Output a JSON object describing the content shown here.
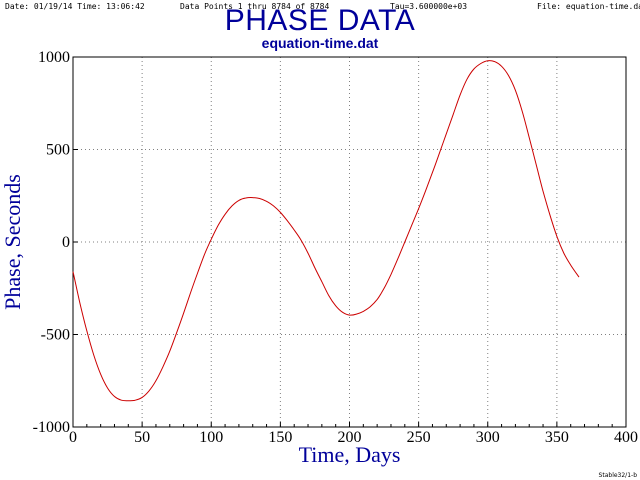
{
  "header": {
    "date": "Date: 01/19/14",
    "time": "Time: 13:06:42",
    "points": "Data Points 1 thru 8784  of 8784",
    "tau": "Tau=3.600000e+03",
    "file": "File: equation-time.dat"
  },
  "footer": "Stable32/1-b",
  "colors": {
    "title": "#00009a",
    "line": "#cc0000",
    "axis_title": "#00009a"
  },
  "chart_data": {
    "type": "line",
    "title": "PHASE DATA",
    "subtitle": "equation-time.dat",
    "xlabel": "Time,  Days",
    "ylabel": "Phase,  Seconds",
    "xlim": [
      0,
      400
    ],
    "ylim": [
      -1000,
      1000
    ],
    "xticks": [
      0,
      50,
      100,
      150,
      200,
      250,
      300,
      350,
      400
    ],
    "yticks": [
      -1000,
      -500,
      0,
      500,
      1000
    ],
    "xtick_labels": [
      "0",
      "50",
      "100",
      "150",
      "200",
      "250",
      "300",
      "350",
      "400"
    ],
    "ytick_labels": [
      "-1000",
      "-500",
      "0",
      "500",
      "1000"
    ],
    "grid": true,
    "series": [
      {
        "x": [
          0,
          5,
          10,
          15,
          20,
          25,
          30,
          35,
          40,
          45,
          50,
          55,
          60,
          65,
          70,
          75,
          80,
          85,
          90,
          95,
          100,
          105,
          110,
          115,
          120,
          125,
          130,
          135,
          140,
          145,
          150,
          155,
          160,
          165,
          170,
          175,
          180,
          185,
          190,
          195,
          200,
          205,
          210,
          215,
          220,
          225,
          230,
          235,
          240,
          245,
          250,
          255,
          260,
          265,
          270,
          275,
          280,
          285,
          290,
          295,
          300,
          305,
          310,
          315,
          320,
          325,
          330,
          335,
          340,
          345,
          350,
          355,
          360,
          366
        ],
        "y": [
          -160,
          -330,
          -480,
          -610,
          -715,
          -790,
          -835,
          -855,
          -858,
          -855,
          -840,
          -805,
          -750,
          -675,
          -590,
          -490,
          -385,
          -275,
          -170,
          -70,
          15,
          90,
          150,
          195,
          225,
          238,
          240,
          235,
          220,
          195,
          160,
          115,
          65,
          10,
          -60,
          -140,
          -215,
          -290,
          -345,
          -380,
          -395,
          -390,
          -375,
          -350,
          -310,
          -250,
          -175,
          -90,
          0,
          90,
          180,
          275,
          375,
          480,
          585,
          690,
          795,
          880,
          935,
          965,
          980,
          975,
          950,
          900,
          820,
          705,
          565,
          420,
          275,
          145,
          30,
          -60,
          -125,
          -190
        ]
      }
    ]
  }
}
